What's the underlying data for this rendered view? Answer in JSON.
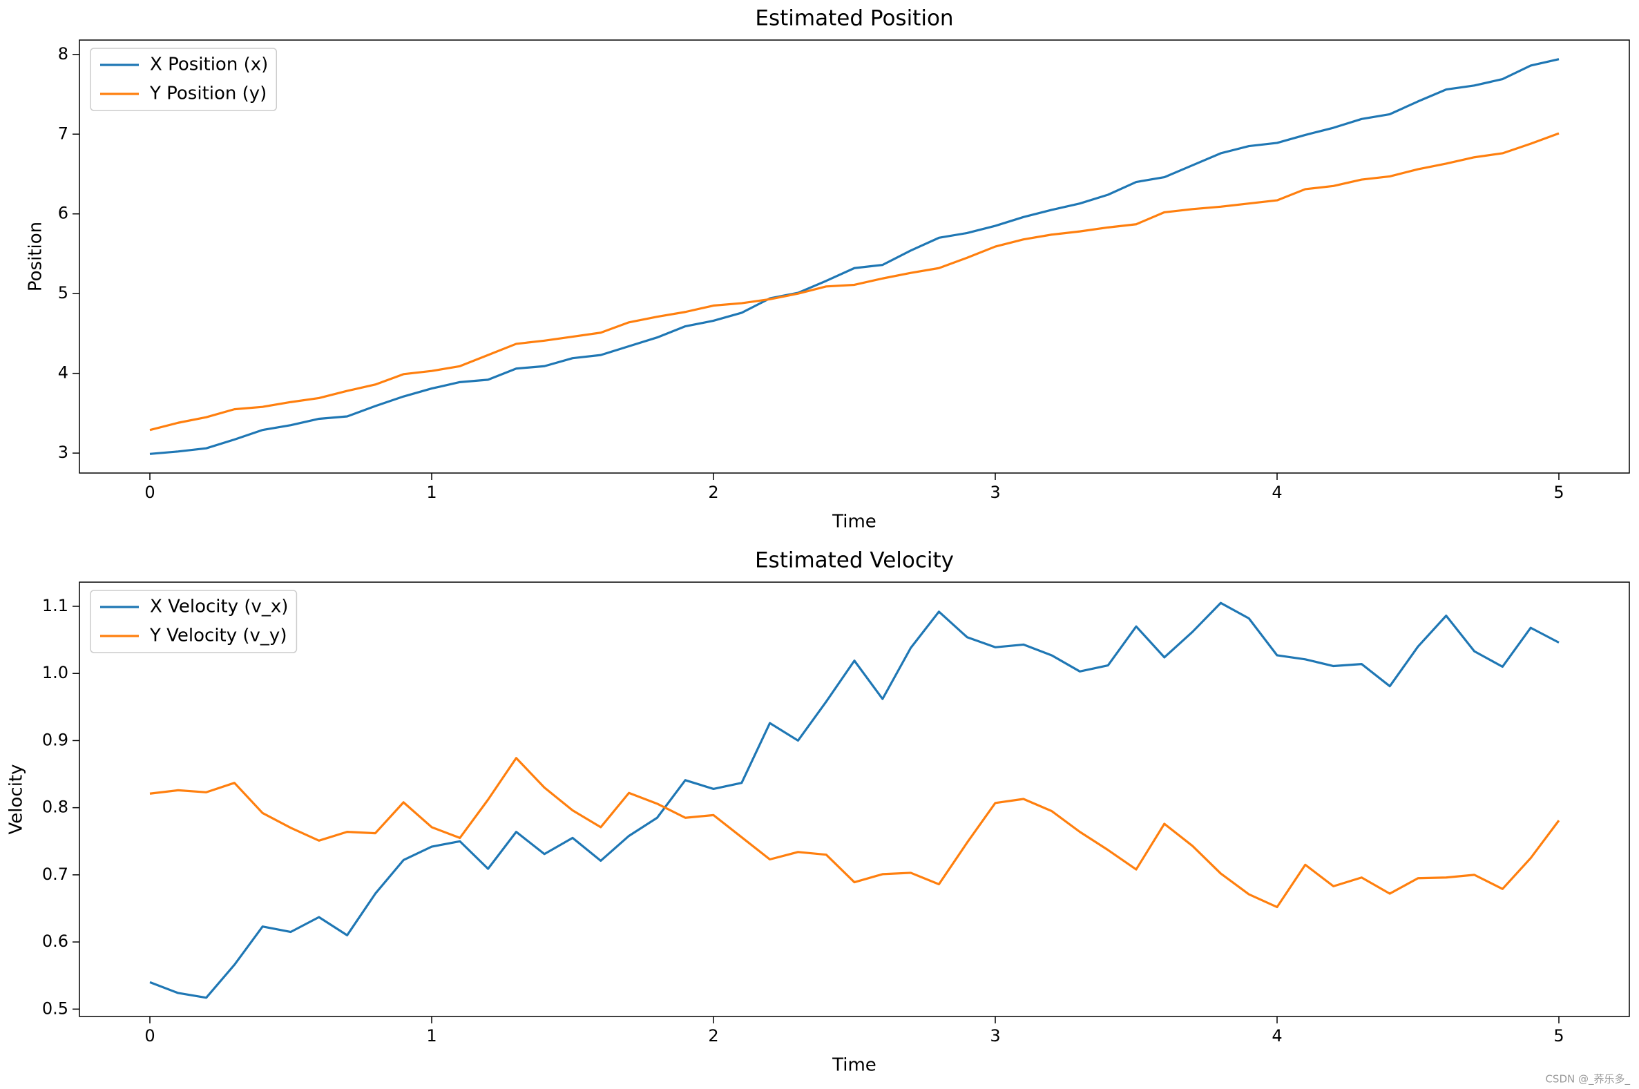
{
  "chart_data": [
    {
      "type": "line",
      "title": "Estimated Position",
      "xlabel": "Time",
      "ylabel": "Position",
      "x": [
        0,
        0.1,
        0.2,
        0.3,
        0.4,
        0.5,
        0.6,
        0.7,
        0.8,
        0.9,
        1,
        1.1,
        1.2,
        1.3,
        1.4,
        1.5,
        1.6,
        1.7,
        1.8,
        1.9,
        2,
        2.1,
        2.2,
        2.3,
        2.4,
        2.5,
        2.6,
        2.7,
        2.8,
        2.9,
        3,
        3.1,
        3.2,
        3.3,
        3.4,
        3.5,
        3.6,
        3.7,
        3.8,
        3.9,
        4,
        4.1,
        4.2,
        4.3,
        4.4,
        4.5,
        4.6,
        4.7,
        4.8,
        4.9,
        5
      ],
      "series": [
        {
          "name": "X Position (x)",
          "color": "#1f77b4",
          "values": [
            2.99,
            3.02,
            3.06,
            3.17,
            3.29,
            3.35,
            3.43,
            3.46,
            3.59,
            3.71,
            3.81,
            3.89,
            3.92,
            4.06,
            4.09,
            4.19,
            4.23,
            4.34,
            4.45,
            4.59,
            4.66,
            4.76,
            4.94,
            5.01,
            5.16,
            5.32,
            5.36,
            5.54,
            5.7,
            5.76,
            5.85,
            5.96,
            6.05,
            6.13,
            6.24,
            6.4,
            6.46,
            6.61,
            6.76,
            6.85,
            6.89,
            6.99,
            7.08,
            7.19,
            7.25,
            7.41,
            7.56,
            7.61,
            7.69,
            7.86,
            7.94
          ]
        },
        {
          "name": "Y Position (y)",
          "color": "#ff7f0e",
          "values": [
            3.29,
            3.38,
            3.45,
            3.55,
            3.58,
            3.64,
            3.69,
            3.78,
            3.86,
            3.99,
            4.03,
            4.09,
            4.23,
            4.37,
            4.41,
            4.46,
            4.51,
            4.64,
            4.71,
            4.77,
            4.85,
            4.88,
            4.93,
            5.0,
            5.09,
            5.11,
            5.19,
            5.26,
            5.32,
            5.45,
            5.59,
            5.68,
            5.74,
            5.78,
            5.83,
            5.87,
            6.02,
            6.06,
            6.09,
            6.13,
            6.17,
            6.31,
            6.35,
            6.43,
            6.47,
            6.56,
            6.63,
            6.71,
            6.76,
            6.88,
            7.01
          ]
        }
      ],
      "xlim": [
        -0.25,
        5.25
      ],
      "xticks": [
        0,
        1,
        2,
        3,
        4,
        5
      ],
      "ylim": [
        2.75,
        8.18
      ],
      "yticks": [
        3,
        4,
        5,
        6,
        7,
        8
      ],
      "grid": false,
      "legend": "upper left"
    },
    {
      "type": "line",
      "title": "Estimated Velocity",
      "xlabel": "Time",
      "ylabel": "Velocity",
      "x": [
        0,
        0.1,
        0.2,
        0.3,
        0.4,
        0.5,
        0.6,
        0.7,
        0.8,
        0.9,
        1,
        1.1,
        1.2,
        1.3,
        1.4,
        1.5,
        1.6,
        1.7,
        1.8,
        1.9,
        2,
        2.1,
        2.2,
        2.3,
        2.4,
        2.5,
        2.6,
        2.7,
        2.8,
        2.9,
        3,
        3.1,
        3.2,
        3.3,
        3.4,
        3.5,
        3.6,
        3.7,
        3.8,
        3.9,
        4,
        4.1,
        4.2,
        4.3,
        4.4,
        4.5,
        4.6,
        4.7,
        4.8,
        4.9,
        5
      ],
      "series": [
        {
          "name": "X Velocity (v_x)",
          "color": "#1f77b4",
          "values": [
            0.54,
            0.524,
            0.517,
            0.566,
            0.623,
            0.615,
            0.637,
            0.61,
            0.672,
            0.722,
            0.742,
            0.75,
            0.709,
            0.764,
            0.731,
            0.755,
            0.721,
            0.758,
            0.785,
            0.841,
            0.828,
            0.837,
            0.926,
            0.9,
            0.958,
            1.019,
            0.962,
            1.038,
            1.092,
            1.054,
            1.039,
            1.043,
            1.027,
            1.003,
            1.012,
            1.07,
            1.024,
            1.062,
            1.105,
            1.082,
            1.027,
            1.021,
            1.011,
            1.014,
            0.981,
            1.04,
            1.086,
            1.033,
            1.01,
            1.068,
            1.046
          ]
        },
        {
          "name": "Y Velocity (v_y)",
          "color": "#ff7f0e",
          "values": [
            0.821,
            0.826,
            0.823,
            0.837,
            0.792,
            0.77,
            0.751,
            0.764,
            0.762,
            0.808,
            0.771,
            0.755,
            0.812,
            0.874,
            0.83,
            0.796,
            0.771,
            0.822,
            0.806,
            0.785,
            0.789,
            0.756,
            0.723,
            0.734,
            0.73,
            0.689,
            0.701,
            0.703,
            0.686,
            0.748,
            0.807,
            0.813,
            0.795,
            0.764,
            0.737,
            0.708,
            0.776,
            0.743,
            0.702,
            0.671,
            0.652,
            0.715,
            0.683,
            0.696,
            0.672,
            0.695,
            0.696,
            0.7,
            0.679,
            0.725,
            0.781
          ]
        }
      ],
      "xlim": [
        -0.25,
        5.25
      ],
      "xticks": [
        0,
        1,
        2,
        3,
        4,
        5
      ],
      "ylim": [
        0.489,
        1.136
      ],
      "yticks": [
        0.5,
        0.6,
        0.7,
        0.8,
        0.9,
        {
          "value": 1,
          "label": "1.0"
        },
        1.1
      ],
      "grid": false,
      "legend": "upper left"
    }
  ],
  "watermark": "CSDN @_荞乐多_"
}
